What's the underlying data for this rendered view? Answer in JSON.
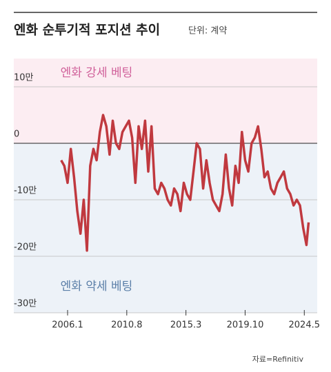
{
  "chart_data": {
    "type": "line",
    "title": "엔화 순투기적 포지션 추이",
    "subtitle": "단위: 계약",
    "annotations": [
      "엔화 강세 베팅",
      "엔화 약세 베팅"
    ],
    "source": "자료=Refinitiv",
    "x": [
      "2005.7",
      "2005.10",
      "2006.1",
      "2006.4",
      "2006.7",
      "2006.10",
      "2007.1",
      "2007.4",
      "2007.7",
      "2007.10",
      "2008.1",
      "2008.4",
      "2008.7",
      "2008.10",
      "2009.1",
      "2009.4",
      "2009.7",
      "2009.10",
      "2010.1",
      "2010.4",
      "2010.7",
      "2010.10",
      "2011.1",
      "2011.4",
      "2011.7",
      "2011.10",
      "2012.1",
      "2012.4",
      "2012.7",
      "2012.10",
      "2013.1",
      "2013.4",
      "2013.7",
      "2013.10",
      "2014.1",
      "2014.4",
      "2014.7",
      "2014.10",
      "2015.1",
      "2015.4",
      "2015.7",
      "2015.10",
      "2016.1",
      "2016.4",
      "2016.7",
      "2016.10",
      "2017.1",
      "2017.4",
      "2017.7",
      "2017.10",
      "2018.1",
      "2018.4",
      "2018.7",
      "2018.10",
      "2019.1",
      "2019.4",
      "2019.7",
      "2019.10",
      "2020.1",
      "2020.4",
      "2020.7",
      "2020.10",
      "2021.1",
      "2021.4",
      "2021.7",
      "2021.10",
      "2022.1",
      "2022.4",
      "2022.7",
      "2022.10",
      "2023.1",
      "2023.4",
      "2023.7",
      "2023.10",
      "2024.1",
      "2024.4",
      "2024.7",
      "2024.9"
    ],
    "series": [
      {
        "name": "엔화 순투기적 포지션",
        "color": "#c0393f",
        "values": [
          -30000,
          -40000,
          -70000,
          -10000,
          -60000,
          -120000,
          -160000,
          -100000,
          -190000,
          -40000,
          -10000,
          -30000,
          20000,
          50000,
          30000,
          -20000,
          40000,
          0,
          -10000,
          20000,
          30000,
          40000,
          10000,
          -70000,
          30000,
          -10000,
          40000,
          -50000,
          30000,
          -80000,
          -90000,
          -70000,
          -80000,
          -100000,
          -110000,
          -80000,
          -90000,
          -120000,
          -70000,
          -90000,
          -100000,
          -50000,
          0,
          -10000,
          -80000,
          -30000,
          -70000,
          -100000,
          -110000,
          -120000,
          -90000,
          -20000,
          -80000,
          -110000,
          -40000,
          -70000,
          20000,
          -30000,
          -50000,
          0,
          10000,
          30000,
          -10000,
          -60000,
          -50000,
          -80000,
          -90000,
          -70000,
          -60000,
          -50000,
          -80000,
          -90000,
          -110000,
          -100000,
          -110000,
          -150000,
          -180000,
          -140000
        ]
      }
    ],
    "xlim": [
      "2001.11",
      "2025.5"
    ],
    "xticks": [
      "2006.1",
      "2010.8",
      "2015.3",
      "2019.10",
      "2024.5"
    ],
    "ylim": [
      -300000,
      150000
    ],
    "yticks": [
      {
        "value": 100000,
        "label": "10만"
      },
      0,
      {
        "value": -100000,
        "label": "-10만"
      },
      {
        "value": -200000,
        "label": "-20만"
      },
      {
        "value": -300000,
        "label": "-30만"
      }
    ],
    "grid": true
  }
}
